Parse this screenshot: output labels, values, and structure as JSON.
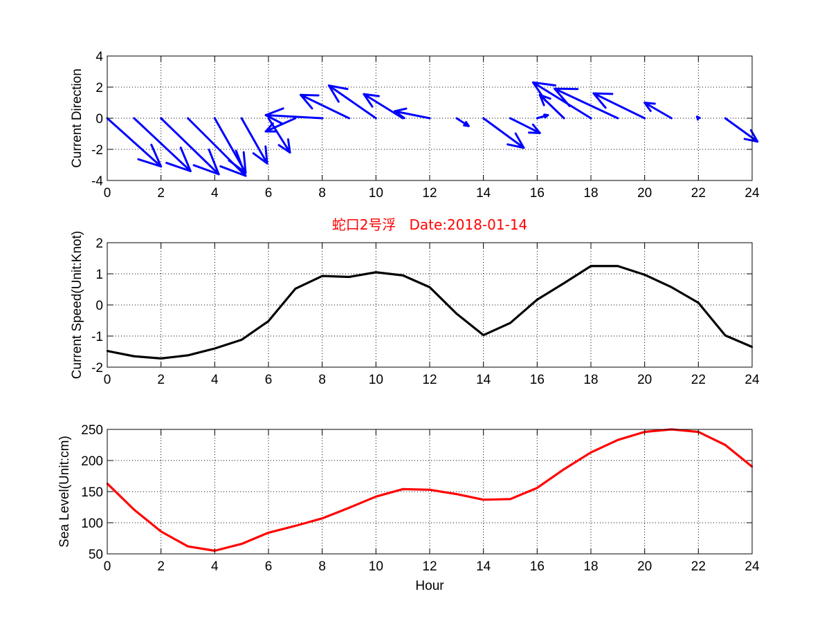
{
  "chart_data": [
    {
      "type": "quiver",
      "ylabel": "Current Direction",
      "xlim": [
        0,
        24
      ],
      "ylim": [
        -4,
        4
      ],
      "xticks": [
        "0",
        "2",
        "4",
        "6",
        "8",
        "10",
        "12",
        "14",
        "16",
        "18",
        "20",
        "22",
        "24"
      ],
      "yticks": [
        "4",
        "2",
        "0",
        "-2",
        "-4"
      ],
      "grid": true,
      "color": "#0000ff",
      "arrows": [
        {
          "x": 0,
          "u": 2.0,
          "v": -3.1
        },
        {
          "x": 1,
          "u": 2.1,
          "v": -3.4
        },
        {
          "x": 2,
          "u": 2.15,
          "v": -3.6
        },
        {
          "x": 3,
          "u": 2.15,
          "v": -3.7
        },
        {
          "x": 4,
          "u": 1.15,
          "v": -3.5
        },
        {
          "x": 5,
          "u": 0.95,
          "v": -2.9
        },
        {
          "x": 6,
          "u": 0.8,
          "v": -2.2
        },
        {
          "x": 7,
          "u": -1.1,
          "v": -0.85
        },
        {
          "x": 8,
          "u": -2.1,
          "v": 0.2
        },
        {
          "x": 9,
          "u": -1.8,
          "v": 1.5
        },
        {
          "x": 10,
          "u": -1.75,
          "v": 2.1
        },
        {
          "x": 11,
          "u": -1.45,
          "v": 1.55
        },
        {
          "x": 12,
          "u": -1.3,
          "v": 0.45
        },
        {
          "x": 13,
          "u": 0.45,
          "v": -0.5
        },
        {
          "x": 14,
          "u": 1.5,
          "v": -1.9
        },
        {
          "x": 15,
          "u": 1.1,
          "v": -0.95
        },
        {
          "x": 16,
          "u": 0.4,
          "v": 0.2
        },
        {
          "x": 17,
          "u": -0.9,
          "v": 1.5
        },
        {
          "x": 18,
          "u": -2.15,
          "v": 2.3
        },
        {
          "x": 19,
          "u": -2.35,
          "v": 1.9
        },
        {
          "x": 20,
          "u": -1.9,
          "v": 1.6
        },
        {
          "x": 21,
          "u": -1.0,
          "v": 1.0
        },
        {
          "x": 22,
          "u": -0.05,
          "v": 0.1
        },
        {
          "x": 23,
          "u": 1.2,
          "v": -1.5
        }
      ]
    },
    {
      "type": "line",
      "title": "蛇口2号浮   Date:2018-01-14",
      "ylabel": "Current Speed(Unit:Knot)",
      "xlim": [
        0,
        24
      ],
      "ylim": [
        -2,
        2
      ],
      "xticks": [
        "0",
        "2",
        "4",
        "6",
        "8",
        "10",
        "12",
        "14",
        "16",
        "18",
        "20",
        "22",
        "24"
      ],
      "yticks": [
        "2",
        "1",
        "0",
        "-1",
        "-2"
      ],
      "grid": true,
      "color": "#000000",
      "x": [
        0,
        1,
        2,
        3,
        4,
        5,
        6,
        7,
        8,
        9,
        10,
        11,
        12,
        13,
        14,
        15,
        16,
        17,
        18,
        19,
        20,
        21,
        22,
        23,
        24
      ],
      "y": [
        -1.48,
        -1.65,
        -1.72,
        -1.62,
        -1.4,
        -1.12,
        -0.52,
        0.52,
        0.93,
        0.9,
        1.05,
        0.95,
        0.57,
        -0.28,
        -0.97,
        -0.58,
        0.17,
        0.7,
        1.25,
        1.25,
        0.97,
        0.57,
        0.07,
        -0.98,
        -1.35
      ]
    },
    {
      "type": "line",
      "xlabel": "Hour",
      "ylabel": "Sea Level(Unit:cm)",
      "xlim": [
        0,
        24
      ],
      "ylim": [
        50,
        250
      ],
      "xticks": [
        "0",
        "2",
        "4",
        "6",
        "8",
        "10",
        "12",
        "14",
        "16",
        "18",
        "20",
        "22",
        "24"
      ],
      "yticks": [
        "250",
        "200",
        "150",
        "100",
        "50"
      ],
      "grid": true,
      "color": "#ff0000",
      "x": [
        0,
        1,
        2,
        3,
        4,
        5,
        6,
        7,
        8,
        9,
        10,
        11,
        12,
        13,
        14,
        15,
        16,
        17,
        18,
        19,
        20,
        21,
        22,
        23,
        24
      ],
      "y": [
        163,
        121,
        86,
        62,
        55,
        66,
        84,
        95,
        107,
        124,
        142,
        154,
        153,
        146,
        137,
        138,
        156,
        186,
        213,
        233,
        246,
        250,
        246,
        225,
        190
      ]
    }
  ]
}
